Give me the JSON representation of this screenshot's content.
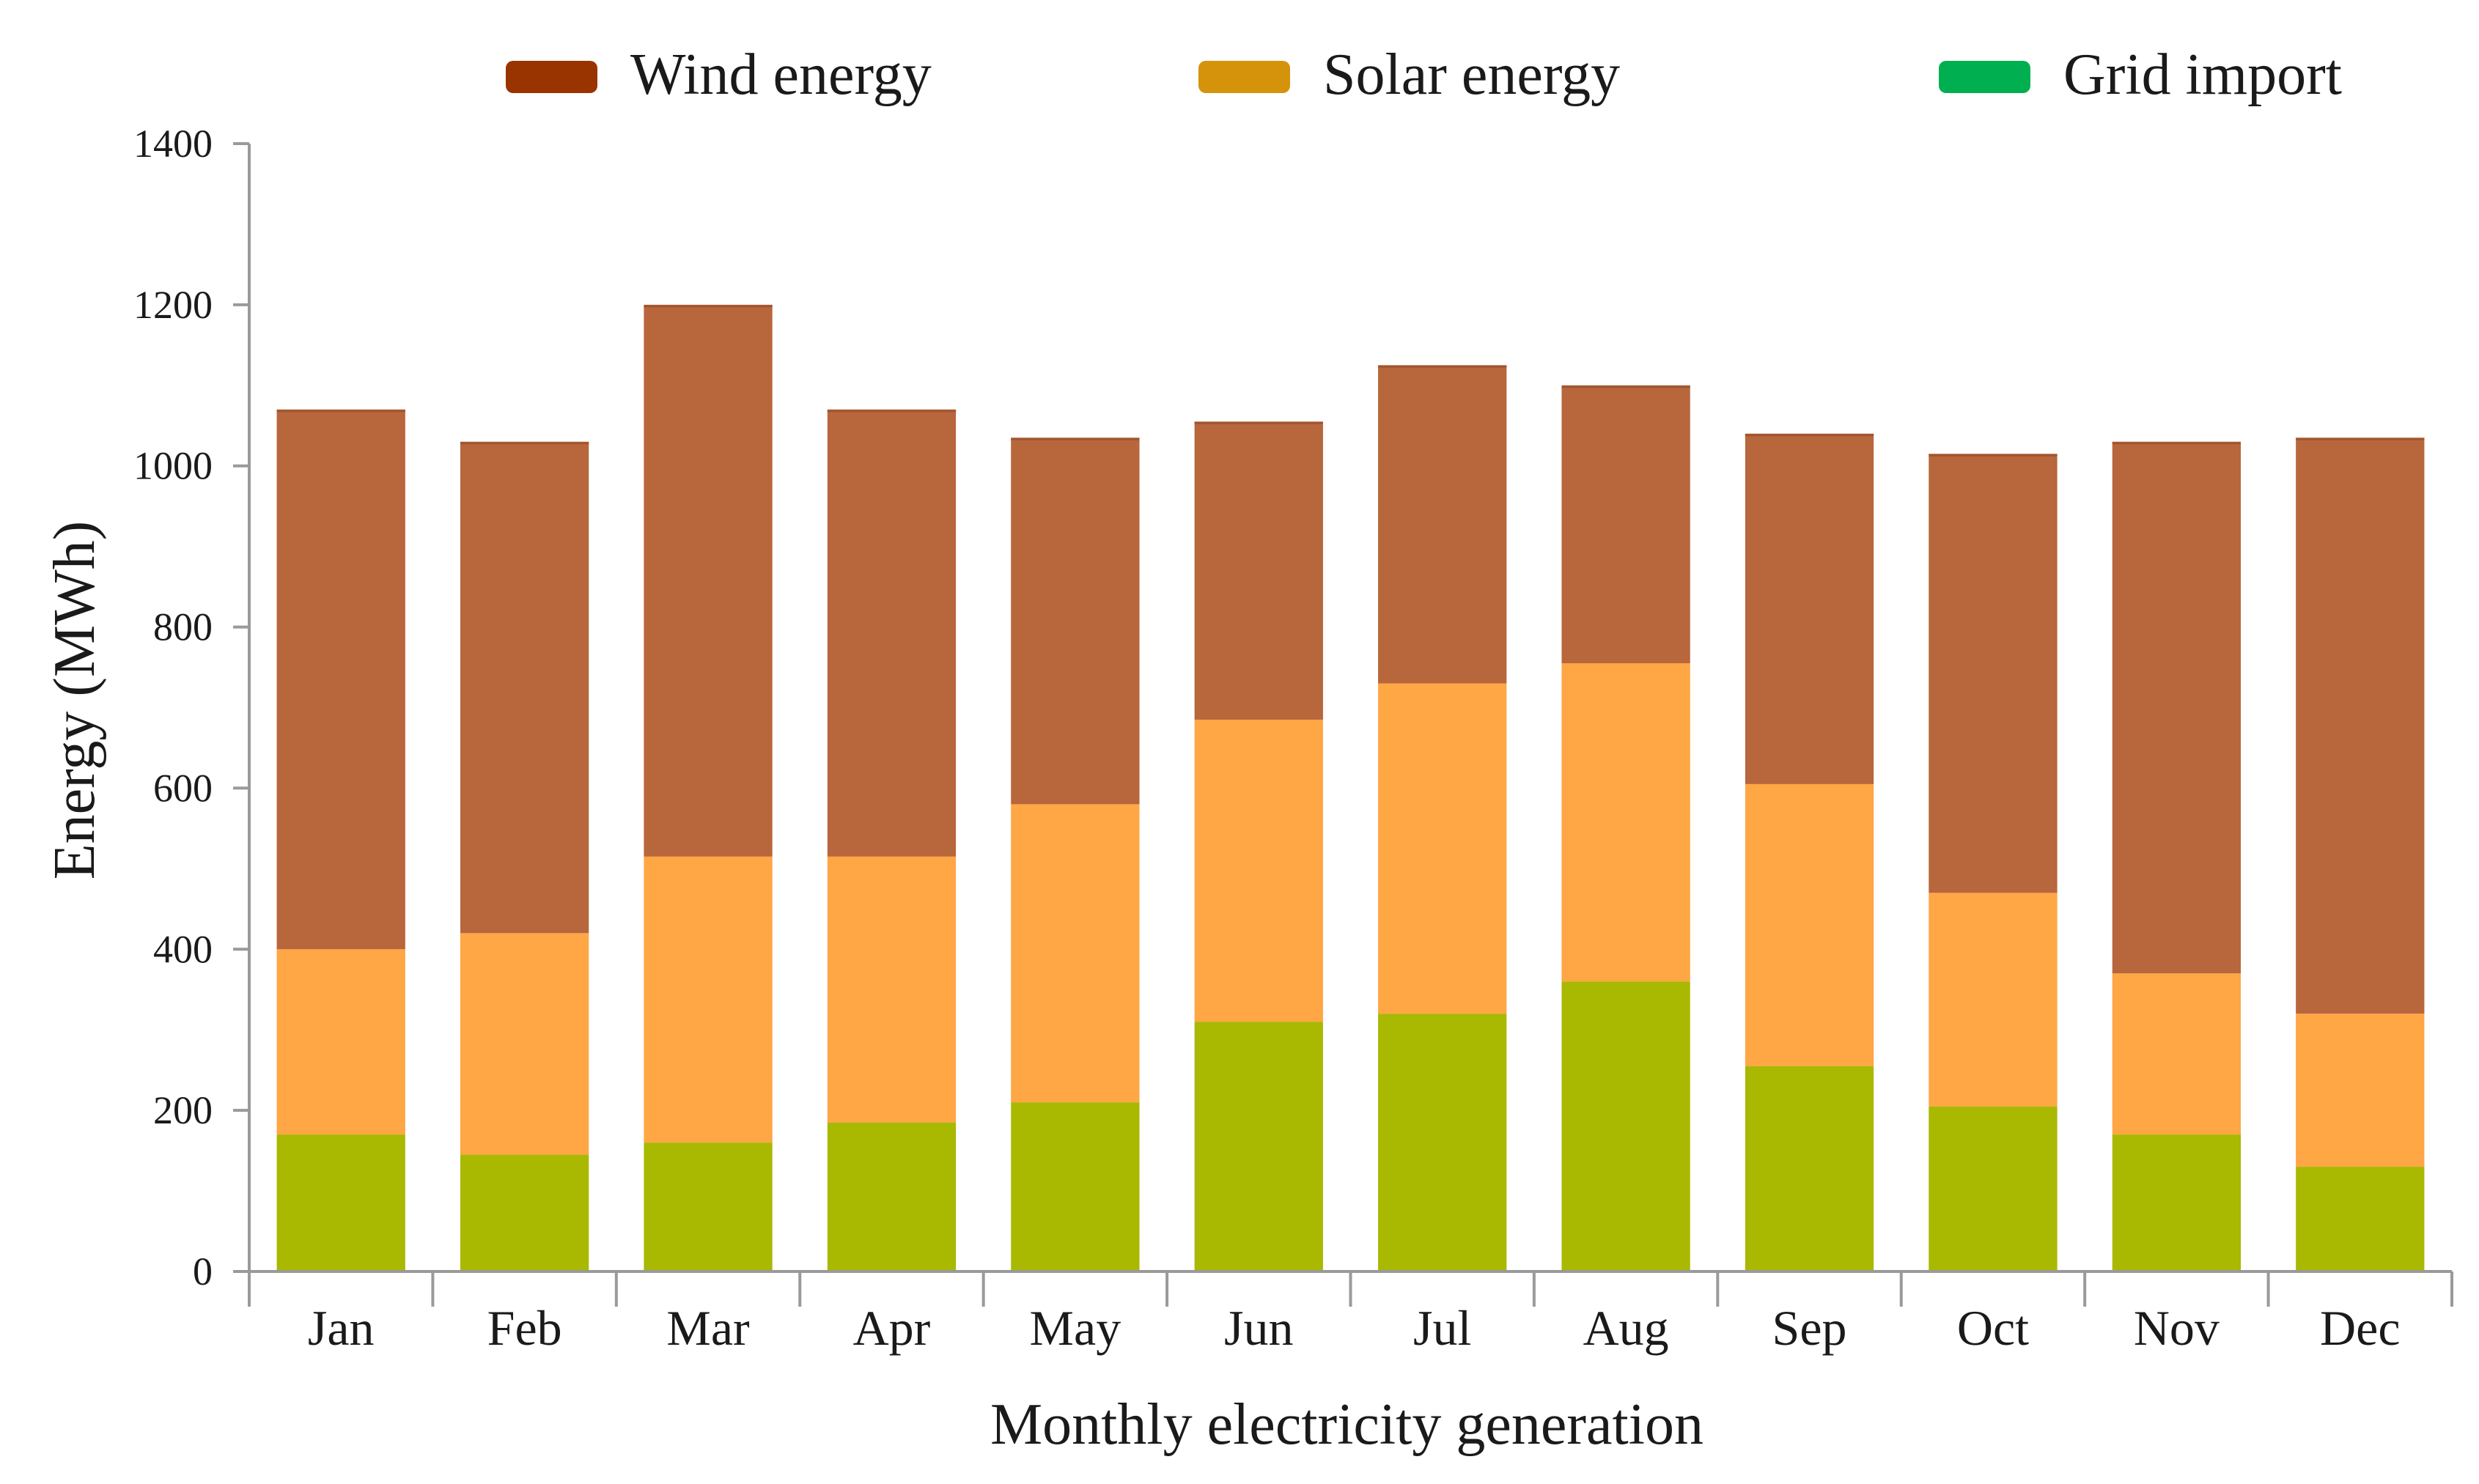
{
  "chart_data": {
    "type": "bar",
    "stacked": true,
    "title": "",
    "xlabel": "Monthly electricity generation",
    "ylabel": "Energy (MWh)",
    "ylim": [
      0,
      1400
    ],
    "yticks": [
      0,
      200,
      400,
      600,
      800,
      1000,
      1200,
      1400
    ],
    "grid": false,
    "legend_position": "top",
    "categories": [
      "Jan",
      "Feb",
      "Mar",
      "Apr",
      "May",
      "Jun",
      "Jul",
      "Aug",
      "Sep",
      "Oct",
      "Nov",
      "Dec"
    ],
    "series": [
      {
        "name": "Grid import",
        "legend_color": "#00b050",
        "bar_color": "#a9b800",
        "values": [
          170,
          145,
          160,
          185,
          210,
          310,
          320,
          360,
          255,
          205,
          170,
          130
        ]
      },
      {
        "name": "Solar energy",
        "legend_color": "#d4930a",
        "bar_color": "#ffa645",
        "values": [
          230,
          275,
          355,
          330,
          370,
          375,
          410,
          395,
          350,
          265,
          200,
          190
        ]
      },
      {
        "name": "Wind energy",
        "legend_color": "#993300",
        "bar_color": "#b8663c",
        "values": [
          670,
          610,
          685,
          555,
          455,
          370,
          395,
          345,
          435,
          545,
          660,
          715
        ]
      }
    ],
    "legend_order": [
      "Wind energy",
      "Solar energy",
      "Grid import"
    ]
  }
}
